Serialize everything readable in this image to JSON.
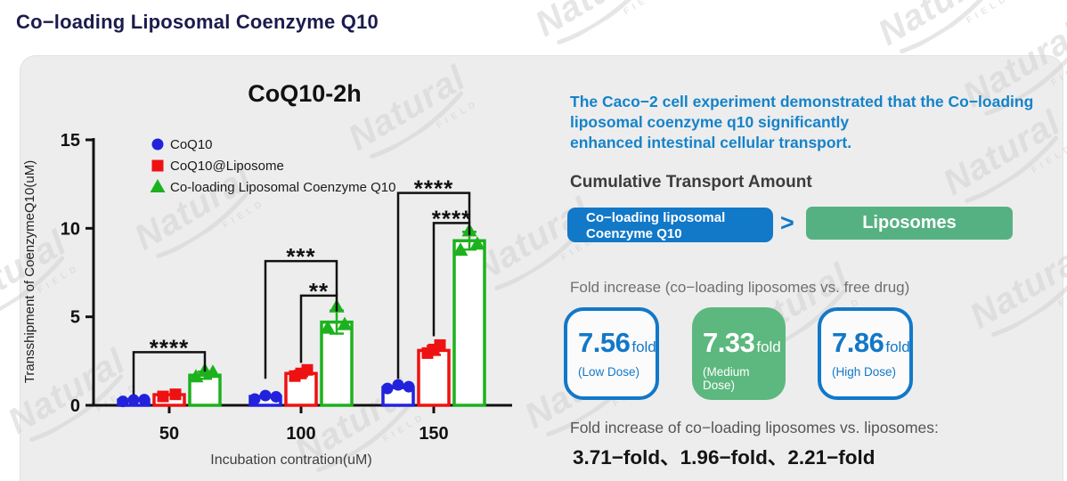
{
  "page": {
    "title": "Co−loading Liposomal Coenzyme Q10"
  },
  "watermark": {
    "brand": "Natural",
    "sub": "FIELD"
  },
  "chart_data": {
    "type": "bar",
    "title": "CoQ10-2h",
    "xlabel": "Incubation contration(uM)",
    "ylabel": "Transshipment of CoenzymeQ10(uM)",
    "ylim": [
      0,
      15
    ],
    "yticks": [
      0,
      5,
      10,
      15
    ],
    "categories": [
      "50",
      "100",
      "150"
    ],
    "grid": false,
    "legend_position": "top-left-inside",
    "series": [
      {
        "name": "CoQ10",
        "marker": "circle",
        "color": "#2222dd",
        "values": [
          0.3,
          0.5,
          1.0
        ],
        "points": [
          [
            0.22,
            0.3,
            0.32
          ],
          [
            0.35,
            0.55,
            0.48
          ],
          [
            0.95,
            1.15,
            1.05
          ]
        ],
        "errors": [
          0,
          0,
          0
        ]
      },
      {
        "name": "CoQ10@Liposome",
        "marker": "square",
        "color": "#ee1111",
        "values": [
          0.6,
          1.8,
          3.1
        ],
        "points": [
          [
            0.5,
            0.62
          ],
          [
            1.65,
            2.0,
            1.8
          ],
          [
            2.95,
            3.4,
            3.15
          ]
        ],
        "errors": [
          0,
          0.15,
          0.25
        ]
      },
      {
        "name": "Co-loading Liposomal Coenzyme Q10",
        "marker": "triangle",
        "color": "#1db21d",
        "values": [
          1.7,
          4.7,
          9.3
        ],
        "points": [
          [
            1.6,
            1.85,
            1.95
          ],
          [
            4.35,
            4.55,
            5.55
          ],
          [
            8.75,
            9.1,
            9.85
          ]
        ],
        "errors": [
          0.2,
          0.65,
          0.5
        ]
      }
    ],
    "significance": [
      {
        "cat": 0,
        "from": 0,
        "to": 2,
        "y": 3.0,
        "leftDrop": 0.6,
        "rightDrop": 1.9,
        "label": "****"
      },
      {
        "cat": 1,
        "from": 0,
        "to": 2,
        "y": 8.15,
        "leftDrop": 1.5,
        "rightDrop": 6.2,
        "label": "***"
      },
      {
        "cat": 1,
        "from": 1,
        "to": 2,
        "y": 6.2,
        "leftDrop": 2.4,
        "rightDrop": 5.3,
        "label": "**"
      },
      {
        "cat": 2,
        "from": 0,
        "to": 2,
        "y": 12.0,
        "leftDrop": 1.5,
        "rightDrop": 10.3,
        "label": "****"
      },
      {
        "cat": 2,
        "from": 1,
        "to": 2,
        "y": 10.3,
        "leftDrop": 3.9,
        "rightDrop": 9.6,
        "label": "****"
      }
    ]
  },
  "right_panel": {
    "intro": {
      "lines": [
        "The Caco−2 cell experiment demonstrated that the Co−loading",
        "liposomal coenzyme q10 significantly",
        "enhanced intestinal cellular transport."
      ]
    },
    "cumulative": {
      "heading": "Cumulative Transport Amount",
      "winner_line1": "Co−loading liposomal",
      "winner_line2": "Coenzyme Q10",
      "comparator": ">",
      "loser": "Liposomes",
      "winner_color": "#1278c8",
      "loser_color": "#55b181"
    },
    "fold_vs_free": {
      "heading": "Fold increase (co−loading liposomes vs. free drug)",
      "cards": [
        {
          "value": "7.56",
          "unit": "fold",
          "dose": "(Low Dose)",
          "style": "outlined"
        },
        {
          "value": "7.33",
          "unit": "fold",
          "dose": "(Medium Dose)",
          "style": "filled"
        },
        {
          "value": "7.86",
          "unit": "fold",
          "dose": "(High Dose)",
          "style": "outlined"
        }
      ]
    },
    "fold_vs_liposomes": {
      "heading": "Fold increase of co−loading liposomes vs. liposomes:",
      "values": "3.71−fold、1.96−fold、2.21−fold"
    }
  },
  "colors": {
    "accent_blue": "#1278c8",
    "accent_green": "#5cb87e",
    "title_navy": "#1b1b4d",
    "series_blue": "#2222dd",
    "series_red": "#ee1111",
    "series_green": "#1db21d"
  }
}
